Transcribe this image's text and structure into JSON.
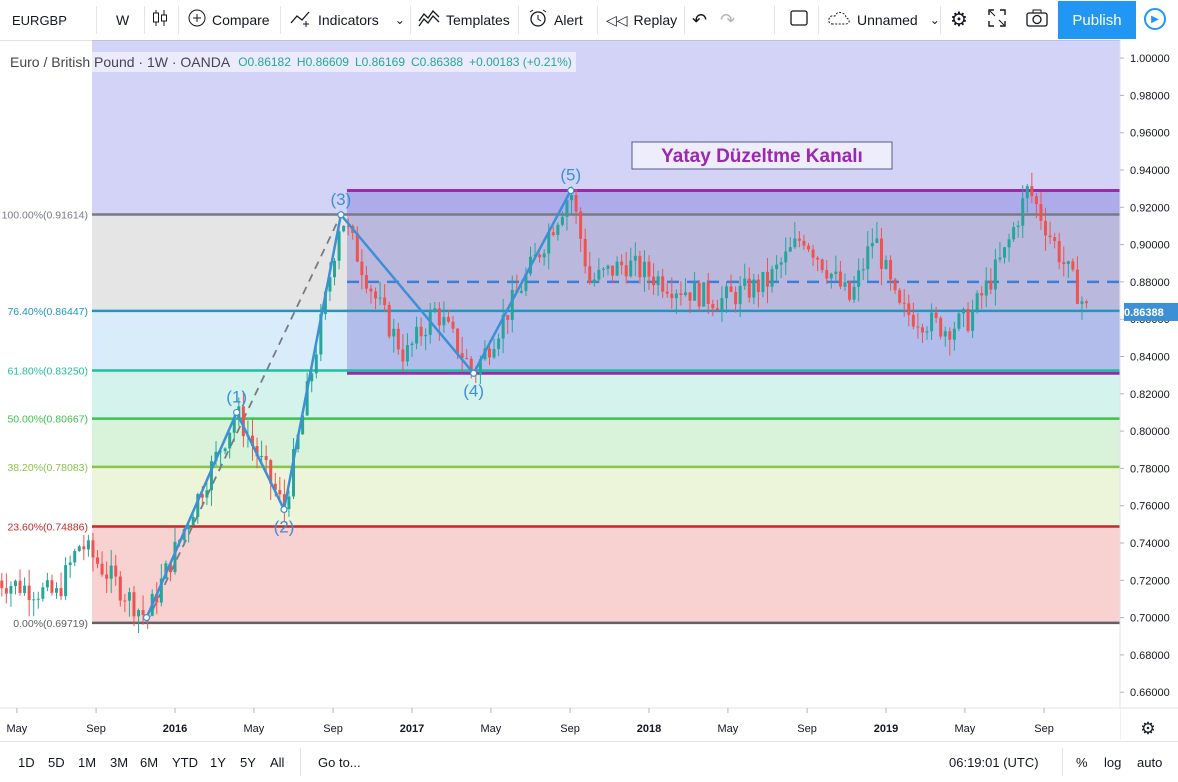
{
  "toolbar": {
    "symbol": "EURGBP",
    "interval": "W",
    "compare": "Compare",
    "indicators": "Indicators",
    "templates": "Templates",
    "alert": "Alert",
    "replay": "Replay",
    "layout_name": "Unnamed",
    "publish": "Publish"
  },
  "legend": {
    "symbol_desc": "Euro / British Pound · 1W · OANDA",
    "open": "O0.86182",
    "high": "H0.86609",
    "low": "L0.86169",
    "close": "C0.86388",
    "change": "+0.00183 (+0.21%)"
  },
  "bottom": {
    "ranges": [
      "1D",
      "5D",
      "1M",
      "3M",
      "6M",
      "YTD",
      "1Y",
      "5Y",
      "All"
    ],
    "goto": "Go to...",
    "time": "06:19:01 (UTC)",
    "percent": "%",
    "log": "log",
    "auto": "auto"
  },
  "colors": {
    "up": "#26a69a",
    "down": "#ef5350",
    "wave": "#3d8fd6",
    "channel": "#9c27b0",
    "title": "#9c27b0",
    "accent": "#2196f3"
  },
  "chart_data": {
    "type": "candlestick",
    "symbol": "EURGBP",
    "timeframe": "1W",
    "ylim": [
      0.64,
      1.0
    ],
    "y_ticks": [
      "1.00000",
      "0.98000",
      "0.96000",
      "0.94000",
      "0.92000",
      "0.90000",
      "0.88000",
      "0.86000",
      "0.84000",
      "0.82000",
      "0.80000",
      "0.78000",
      "0.76000",
      "0.74000",
      "0.72000",
      "0.70000",
      "0.68000",
      "0.66000"
    ],
    "x_ticks": [
      {
        "label": "May",
        "t": 2015.333
      },
      {
        "label": "Sep",
        "t": 2015.667
      },
      {
        "label": "2016",
        "t": 2016.0
      },
      {
        "label": "May",
        "t": 2016.333
      },
      {
        "label": "Sep",
        "t": 2016.667
      },
      {
        "label": "2017",
        "t": 2017.0
      },
      {
        "label": "May",
        "t": 2017.333
      },
      {
        "label": "Sep",
        "t": 2017.667
      },
      {
        "label": "2018",
        "t": 2018.0
      },
      {
        "label": "May",
        "t": 2018.333
      },
      {
        "label": "Sep",
        "t": 2018.667
      },
      {
        "label": "2019",
        "t": 2019.0
      },
      {
        "label": "May",
        "t": 2019.333
      },
      {
        "label": "Sep",
        "t": 2019.667
      }
    ],
    "last_price": "0.86388",
    "fib_levels": [
      {
        "label": "100.00%(0.91614)",
        "value": 0.91614,
        "color": "#787b86"
      },
      {
        "label": "76.40%(0.86447)",
        "value": 0.86447,
        "color": "#2196c0"
      },
      {
        "label": "61.80%(0.83250)",
        "value": 0.8325,
        "color": "#1fbf9f"
      },
      {
        "label": "50.00%(0.80667)",
        "value": 0.80667,
        "color": "#3cc24d"
      },
      {
        "label": "38.20%(0.78083)",
        "value": 0.78083,
        "color": "#8bc34a"
      },
      {
        "label": "23.60%(0.74886)",
        "value": 0.74886,
        "color": "#c62828"
      },
      {
        "label": "0.00%(0.69719)",
        "value": 0.69719,
        "color": "#616161"
      }
    ],
    "channel": {
      "title": "Yatay Düzeltme Kanalı",
      "top": 0.929,
      "bottom": 0.831,
      "mid": 0.88
    },
    "waves": [
      {
        "label": "",
        "t": 2015.88,
        "y": 0.7
      },
      {
        "label": "(1)",
        "t": 2016.26,
        "y": 0.81
      },
      {
        "label": "(2)",
        "t": 2016.46,
        "y": 0.758
      },
      {
        "label": "(3)",
        "t": 2016.7,
        "y": 0.916
      },
      {
        "label": "(4)",
        "t": 2017.26,
        "y": 0.831
      },
      {
        "label": "(5)",
        "t": 2017.67,
        "y": 0.929
      }
    ],
    "series": [
      {
        "t": 2015.25,
        "close": 0.72
      },
      {
        "t": 2015.5,
        "close": 0.712
      },
      {
        "t": 2015.6,
        "close": 0.74
      },
      {
        "t": 2015.88,
        "close": 0.7
      },
      {
        "t": 2016.08,
        "close": 0.76
      },
      {
        "t": 2016.26,
        "close": 0.81
      },
      {
        "t": 2016.46,
        "close": 0.758
      },
      {
        "t": 2016.62,
        "close": 0.86
      },
      {
        "t": 2016.7,
        "close": 0.916
      },
      {
        "t": 2016.85,
        "close": 0.87
      },
      {
        "t": 2016.97,
        "close": 0.84
      },
      {
        "t": 2017.1,
        "close": 0.865
      },
      {
        "t": 2017.26,
        "close": 0.831
      },
      {
        "t": 2017.45,
        "close": 0.875
      },
      {
        "t": 2017.67,
        "close": 0.929
      },
      {
        "t": 2017.75,
        "close": 0.88
      },
      {
        "t": 2017.9,
        "close": 0.89
      },
      {
        "t": 2018.1,
        "close": 0.878
      },
      {
        "t": 2018.3,
        "close": 0.87
      },
      {
        "t": 2018.5,
        "close": 0.88
      },
      {
        "t": 2018.65,
        "close": 0.905
      },
      {
        "t": 2018.85,
        "close": 0.87
      },
      {
        "t": 2018.95,
        "close": 0.905
      },
      {
        "t": 2019.05,
        "close": 0.865
      },
      {
        "t": 2019.25,
        "close": 0.855
      },
      {
        "t": 2019.35,
        "close": 0.86
      },
      {
        "t": 2019.5,
        "close": 0.895
      },
      {
        "t": 2019.6,
        "close": 0.93
      },
      {
        "t": 2019.75,
        "close": 0.89
      },
      {
        "t": 2019.85,
        "close": 0.864
      }
    ]
  }
}
